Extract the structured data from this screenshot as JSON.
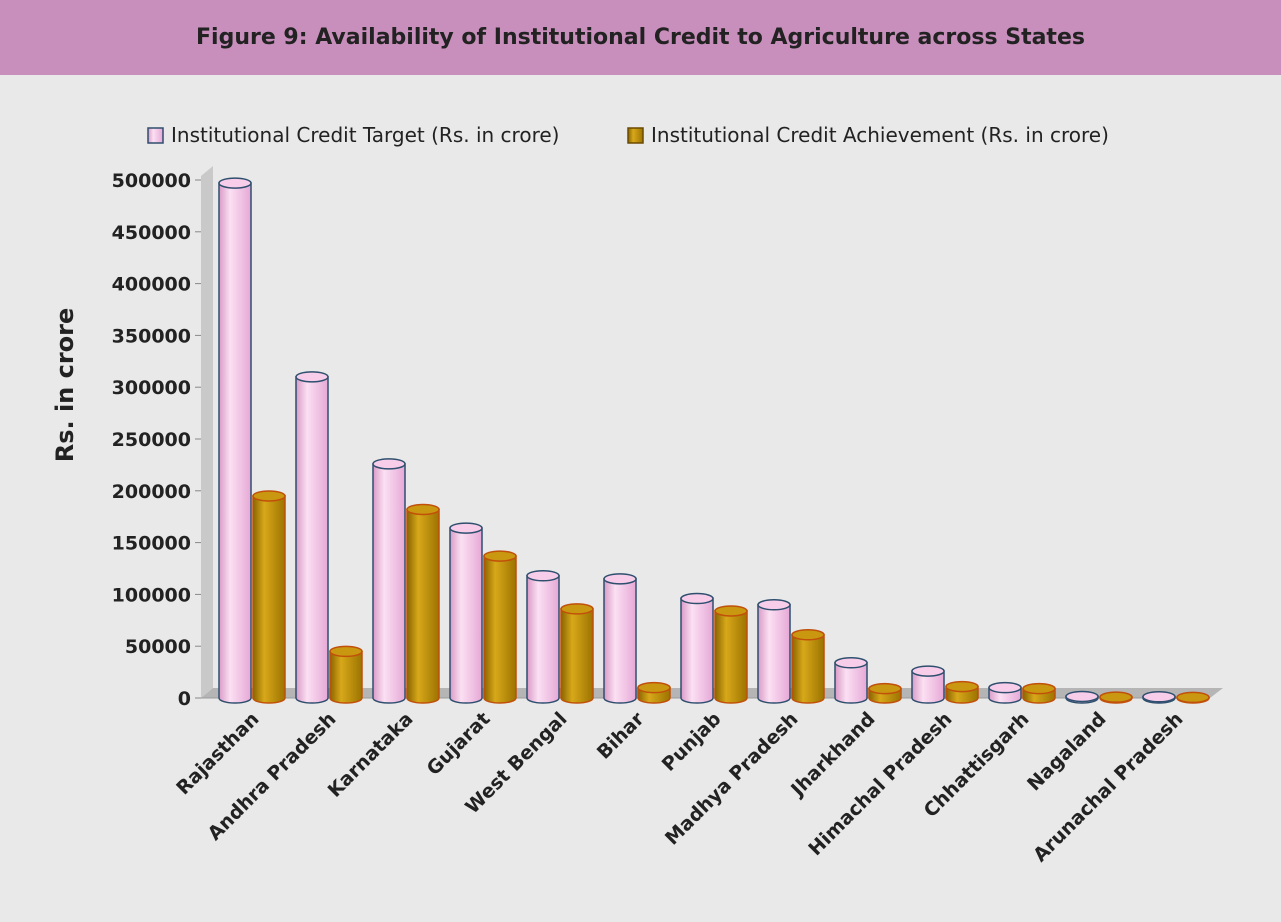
{
  "title": "Figure 9: Availability of Institutional Credit to Agriculture across States",
  "chart_data": {
    "type": "bar",
    "title": "Figure 9: Availability of Institutional Credit to Agriculture across States",
    "ylabel": "Rs. in crore",
    "xlabel": "",
    "ylim": [
      0,
      500000
    ],
    "yticks": [
      0,
      50000,
      100000,
      150000,
      200000,
      250000,
      300000,
      350000,
      400000,
      450000,
      500000
    ],
    "legend_position": "top",
    "categories": [
      "Rajasthan",
      "Andhra Pradesh",
      "Karnataka",
      "Gujarat",
      "West Bengal",
      "Bihar",
      "Punjab",
      "Madhya Pradesh",
      "Jharkhand",
      "Himachal Pradesh",
      "Chhattisgarh",
      "Nagaland",
      "Arunachal Pradesh"
    ],
    "series": [
      {
        "name": "Institutional Credit Target (Rs. in crore)",
        "color": "#f3bde4",
        "values": [
          497000,
          310000,
          226000,
          164000,
          118000,
          115000,
          96000,
          90000,
          34000,
          26000,
          10000,
          1500,
          1200
        ]
      },
      {
        "name": "Institutional Credit Achievement (Rs. in crore)",
        "color": "#b88a00",
        "values": [
          195000,
          45000,
          182000,
          137000,
          86000,
          10000,
          84000,
          61000,
          9000,
          11000,
          9000,
          800,
          600
        ]
      }
    ]
  }
}
